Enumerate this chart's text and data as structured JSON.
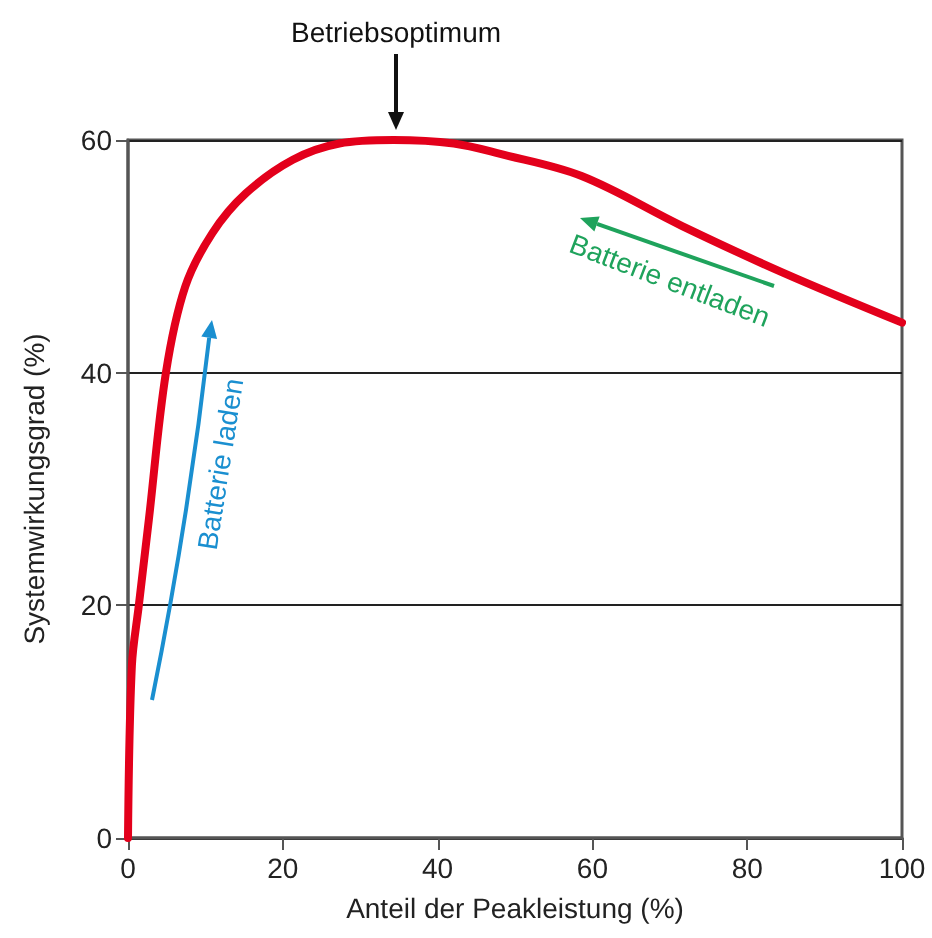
{
  "chart_data": {
    "type": "line",
    "xlabel": "Anteil der Peakleistung (%)",
    "ylabel": "Systemwirkungsgrad (%)",
    "series": [
      {
        "color": "#e3001b",
        "x": [
          0,
          0.5,
          1.4,
          2.7,
          4.9,
          7.4,
          10.9,
          15.2,
          21.3,
          27.3,
          34.3,
          42.1,
          48.1,
          58.6,
          71.6,
          84.6,
          100
        ],
        "values": [
          0,
          14.8,
          20,
          27.4,
          40,
          47.4,
          52,
          55.4,
          58.3,
          59.7,
          60,
          59.7,
          58.8,
          56.9,
          52.6,
          48.6,
          44.3
        ]
      }
    ],
    "xlim": [
      0,
      100
    ],
    "xticks": [
      0,
      20,
      40,
      60,
      80,
      100
    ],
    "ylim": [
      0,
      60
    ],
    "yticks": [
      0,
      20,
      40,
      60
    ],
    "grid": "y",
    "marker": "none",
    "line_style": "solid",
    "annotations": [
      "Betriebsoptimum",
      "Batterie laden",
      "Batterie entladen"
    ]
  }
}
